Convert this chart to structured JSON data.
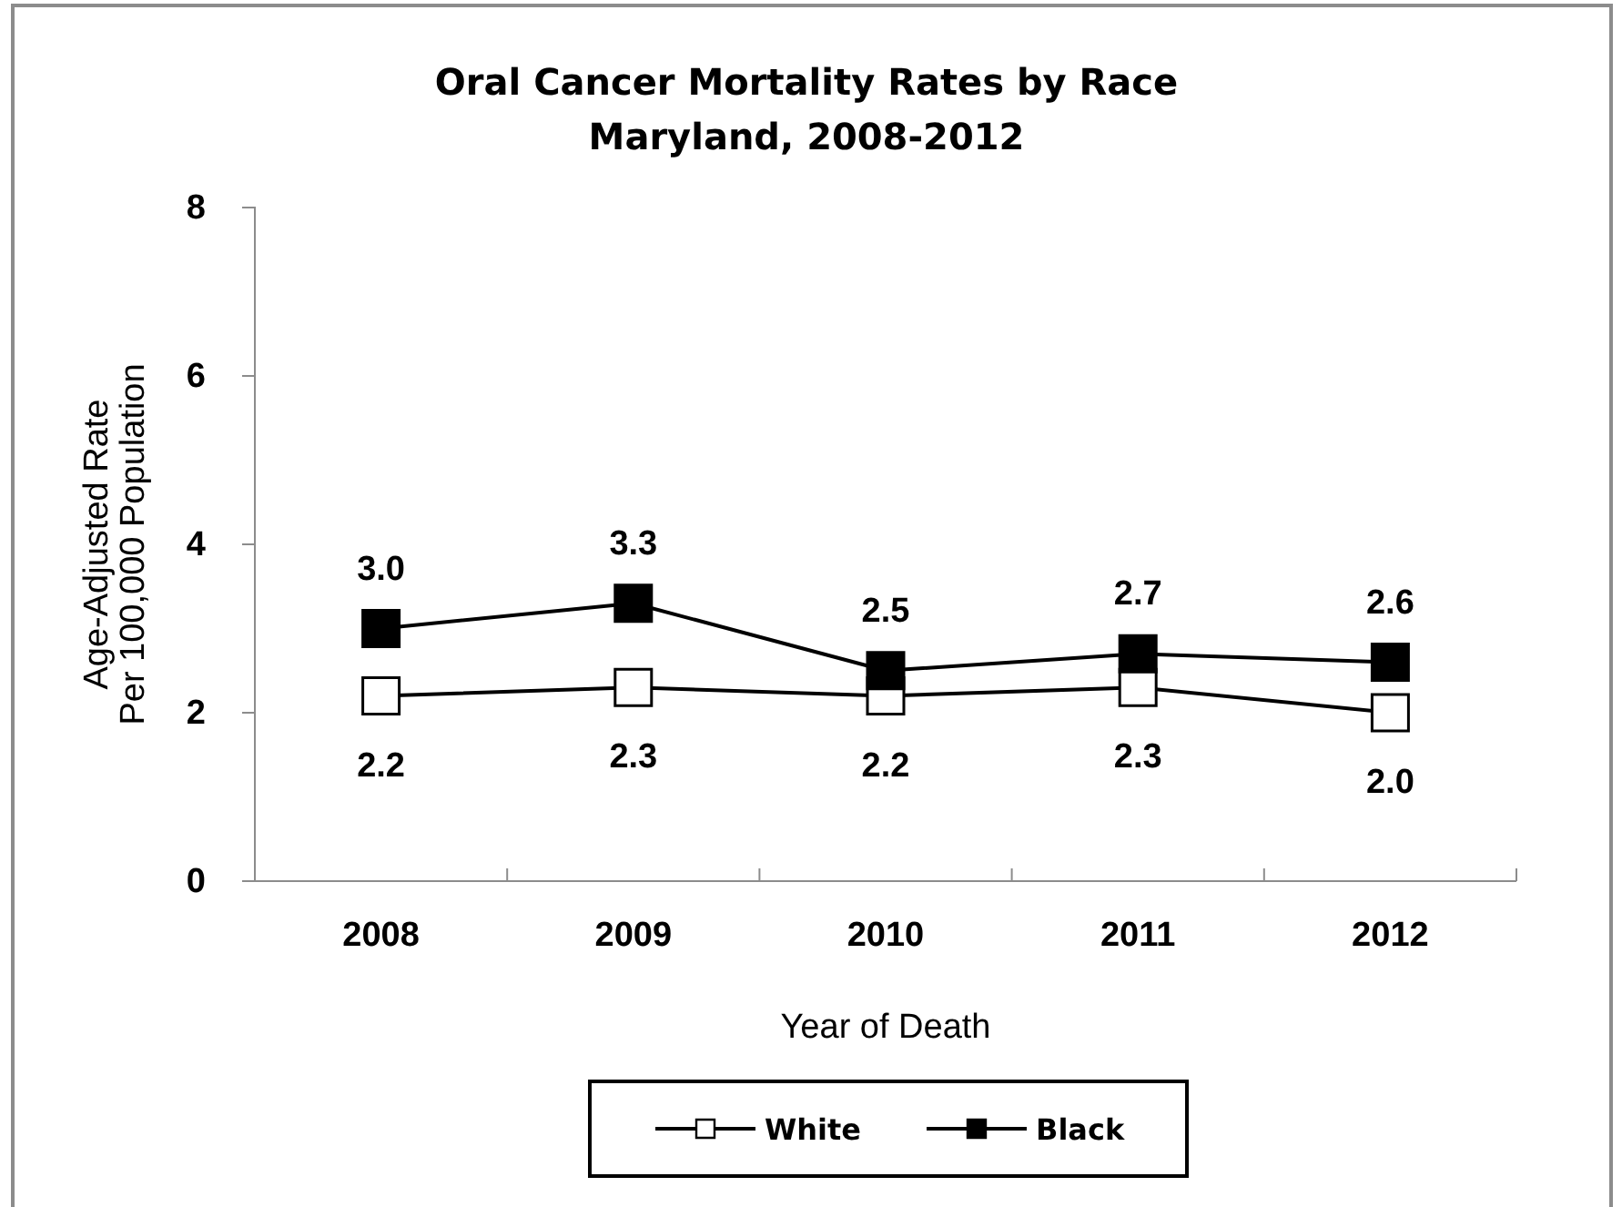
{
  "chart_data": {
    "type": "line",
    "title": "Oral Cancer Mortality Rates by Race",
    "subtitle": "Maryland, 2008-2012",
    "xlabel": "Year of Death",
    "ylabel": "Age-Adjusted Rate\nPer 100,000 Population",
    "categories": [
      "2008",
      "2009",
      "2010",
      "2011",
      "2012"
    ],
    "series": [
      {
        "name": "White",
        "color": "#ffffff",
        "values": [
          2.2,
          2.3,
          2.2,
          2.3,
          2.0
        ],
        "value_labels": [
          "2.2",
          "2.3",
          "2.2",
          "2.3",
          "2.0"
        ]
      },
      {
        "name": "Black",
        "color": "#000000",
        "values": [
          3.0,
          3.3,
          2.5,
          2.7,
          2.6
        ],
        "value_labels": [
          "3.0",
          "3.3",
          "2.5",
          "2.7",
          "2.6"
        ]
      }
    ],
    "ylim": [
      0,
      8
    ],
    "yticks": [
      0,
      2,
      4,
      6,
      8
    ],
    "grid": false,
    "legend": "bottom",
    "marker": "square",
    "line_style": "solid"
  }
}
